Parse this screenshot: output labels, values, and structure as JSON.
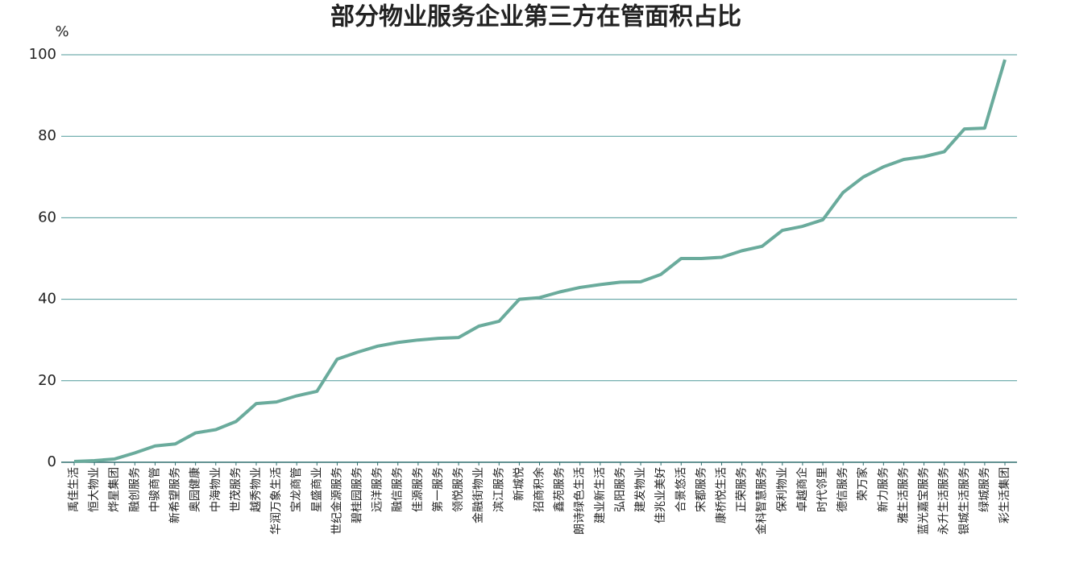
{
  "chart_data": {
    "type": "line",
    "title": "部分物业服务企业第三方在管面积占比",
    "y_label": "%",
    "categories": [
      "禹佳生活",
      "恒大物业",
      "烨星集团",
      "融创服务",
      "中骏商管",
      "新希望服务",
      "奥园健康",
      "中海物业",
      "世茂服务",
      "越秀物业",
      "华润万象生活",
      "宝龙商管",
      "星盛商业",
      "世纪金源服务",
      "碧桂园服务",
      "远洋服务",
      "融信服务",
      "佳源服务",
      "第一服务",
      "领悦服务",
      "金融街物业",
      "滨江服务",
      "新城悦",
      "招商积余",
      "鑫苑服务",
      "朗诗绿色生活",
      "建业新生活",
      "弘阳服务",
      "建发物业",
      "佳兆业美好",
      "合景悠活",
      "宋都服务",
      "康桥悦生活",
      "正荣服务",
      "金科智慧服务",
      "保利物业",
      "卓越商企",
      "时代邻里",
      "德信服务",
      "荣万家",
      "新力服务",
      "雅生活服务",
      "蓝光嘉宝服务",
      "永升生活服务",
      "银城生活服务",
      "绿城服务",
      "彩生活集团"
    ],
    "series": [
      {
        "name": "第三方在管面积占比",
        "color": "#6aab9c",
        "values": [
          0.2,
          0.4,
          0.8,
          2.3,
          4,
          4.5,
          7.2,
          8,
          10,
          14.4,
          14.8,
          16.3,
          17.4,
          25.3,
          27,
          28.5,
          29.4,
          30,
          30.4,
          30.6,
          33.4,
          34.6,
          40,
          40.4,
          41.8,
          42.9,
          43.6,
          44.2,
          44.3,
          46.1,
          50,
          50,
          50.3,
          51.9,
          53,
          56.9,
          57.9,
          59.5,
          66.2,
          70,
          72.5,
          74.3,
          75,
          76.2,
          81.8,
          82,
          98.8
        ]
      }
    ],
    "ylim": [
      0,
      100
    ],
    "yticks": [
      0,
      20,
      40,
      60,
      80,
      100
    ],
    "grid": true
  }
}
